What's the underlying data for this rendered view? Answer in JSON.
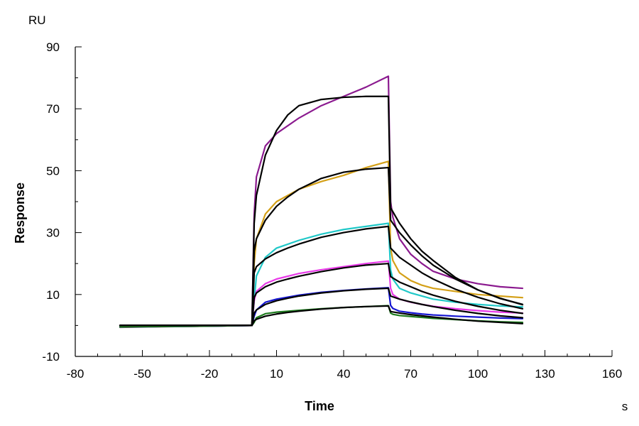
{
  "chart_data": {
    "type": "line",
    "title": "",
    "xlabel": "Time",
    "ylabel": "Response",
    "x_unit": "s",
    "y_unit": "RU",
    "xlim": [
      -80,
      160
    ],
    "ylim": [
      -10,
      90
    ],
    "x_ticks": [
      -80,
      -50,
      -20,
      10,
      40,
      70,
      100,
      130,
      160
    ],
    "y_ticks": [
      -10,
      10,
      30,
      50,
      70,
      90
    ],
    "x_minor_step": 10,
    "y_minor_step": 10,
    "grid": false,
    "legend": "none",
    "injection_start": 0,
    "injection_end": 60,
    "series": [
      {
        "kind": "measured",
        "color": "#8B1A8F",
        "x": [
          -60,
          -50,
          -20,
          -1,
          0,
          1,
          5,
          10,
          20,
          30,
          40,
          50,
          60,
          61,
          62,
          65,
          70,
          75,
          80,
          90,
          100,
          110,
          120
        ],
        "values": [
          -0.6,
          -0.5,
          -0.2,
          0,
          36,
          48,
          58,
          62,
          67,
          71,
          74,
          77,
          80.5,
          40,
          35,
          28,
          23,
          20,
          17.5,
          15,
          13.5,
          12.5,
          12
        ]
      },
      {
        "kind": "measured",
        "color": "#D4A017",
        "x": [
          -60,
          -50,
          -20,
          -1,
          0,
          1,
          5,
          10,
          20,
          30,
          40,
          50,
          60,
          61,
          62,
          65,
          70,
          75,
          80,
          90,
          100,
          110,
          120
        ],
        "values": [
          -0.5,
          -0.4,
          -0.2,
          0,
          20,
          28,
          36,
          40,
          44,
          46.5,
          48.5,
          51,
          53,
          25,
          21,
          17,
          14.5,
          13,
          12,
          11,
          10,
          9.5,
          9
        ]
      },
      {
        "kind": "measured",
        "color": "#20C8C8",
        "x": [
          -60,
          -50,
          -20,
          -1,
          0,
          1,
          5,
          10,
          20,
          30,
          40,
          50,
          60,
          61,
          62,
          65,
          70,
          75,
          80,
          90,
          100,
          110,
          120
        ],
        "values": [
          -0.5,
          -0.4,
          -0.2,
          0,
          8,
          16,
          22,
          25,
          27.5,
          29.5,
          31,
          32,
          33,
          18,
          15,
          12,
          10.5,
          9.5,
          8.5,
          7.5,
          6.8,
          6.3,
          6
        ]
      },
      {
        "kind": "measured",
        "color": "#E83AE8",
        "x": [
          -60,
          -50,
          -20,
          -1,
          0,
          1,
          5,
          10,
          20,
          30,
          40,
          50,
          60,
          61,
          62,
          65,
          70,
          75,
          80,
          90,
          100,
          110,
          120
        ],
        "values": [
          -0.5,
          -0.4,
          -0.2,
          0,
          8,
          11,
          13.5,
          15,
          16.8,
          18,
          19,
          20,
          20.8,
          12,
          10,
          8.5,
          7.5,
          6.8,
          6.2,
          5.4,
          4.8,
          4.3,
          4
        ]
      },
      {
        "kind": "measured",
        "color": "#1515D0",
        "x": [
          -60,
          -50,
          -20,
          -1,
          0,
          1,
          5,
          10,
          20,
          30,
          40,
          50,
          60,
          61,
          62,
          65,
          70,
          75,
          80,
          90,
          100,
          110,
          120
        ],
        "values": [
          -0.5,
          -0.4,
          -0.2,
          0,
          3,
          5,
          7.5,
          8.5,
          9.8,
          10.7,
          11.3,
          11.8,
          12.2,
          6.5,
          5.5,
          4.6,
          4.1,
          3.7,
          3.4,
          3,
          2.7,
          2.4,
          2.2
        ]
      },
      {
        "kind": "measured",
        "color": "#1E7B1E",
        "x": [
          -60,
          -50,
          -20,
          -1,
          0,
          1,
          5,
          10,
          20,
          30,
          40,
          50,
          60,
          61,
          62,
          65,
          70,
          75,
          80,
          90,
          100,
          110,
          120
        ],
        "values": [
          -0.5,
          -0.4,
          -0.2,
          0,
          1,
          2.5,
          3.8,
          4.3,
          4.9,
          5.4,
          5.8,
          6.1,
          6.4,
          4,
          3.6,
          3.2,
          2.9,
          2.6,
          2.3,
          1.9,
          1.5,
          1.2,
          1
        ]
      },
      {
        "kind": "fit",
        "color": "#000000",
        "x": [
          -60,
          -20,
          -1,
          0,
          1,
          5,
          10,
          15,
          20,
          30,
          40,
          50,
          60,
          61,
          65,
          70,
          75,
          80,
          90,
          100,
          110,
          120
        ],
        "values": [
          0,
          0,
          0,
          33,
          42,
          55,
          63,
          68,
          71,
          73,
          73.7,
          74,
          74,
          38,
          33,
          28,
          24,
          21,
          15.5,
          11.5,
          8.7,
          6.8
        ]
      },
      {
        "kind": "fit",
        "color": "#000000",
        "x": [
          -60,
          -20,
          -1,
          0,
          1,
          5,
          10,
          15,
          20,
          30,
          40,
          50,
          60,
          61,
          65,
          70,
          75,
          80,
          90,
          100,
          110,
          120
        ],
        "values": [
          0,
          0,
          0,
          24,
          28,
          34,
          38.5,
          41.5,
          44,
          47.5,
          49.5,
          50.5,
          51,
          34,
          30,
          26,
          22.5,
          19.5,
          15,
          11.5,
          8.8,
          6.7
        ]
      },
      {
        "kind": "fit",
        "color": "#000000",
        "x": [
          -60,
          -20,
          -1,
          0,
          1,
          5,
          10,
          15,
          20,
          30,
          40,
          50,
          60,
          61,
          65,
          70,
          75,
          80,
          90,
          100,
          110,
          120
        ],
        "values": [
          0,
          0,
          0,
          17,
          19,
          21.5,
          23.5,
          25,
          26.3,
          28.5,
          30,
          31.2,
          32,
          25,
          22,
          19.5,
          17,
          15,
          11.7,
          9.1,
          7,
          5.4
        ]
      },
      {
        "kind": "fit",
        "color": "#000000",
        "x": [
          -60,
          -20,
          -1,
          0,
          1,
          5,
          10,
          15,
          20,
          30,
          40,
          50,
          60,
          61,
          65,
          70,
          75,
          80,
          90,
          100,
          110,
          120
        ],
        "values": [
          0,
          0,
          0,
          9,
          10.5,
          12.5,
          14,
          15,
          15.9,
          17.4,
          18.6,
          19.5,
          20,
          15.8,
          14,
          12.5,
          11,
          9.8,
          7.8,
          6.2,
          4.9,
          3.9
        ]
      },
      {
        "kind": "fit",
        "color": "#000000",
        "x": [
          -60,
          -20,
          -1,
          0,
          1,
          5,
          10,
          15,
          20,
          30,
          40,
          50,
          60,
          61,
          65,
          70,
          75,
          80,
          90,
          100,
          110,
          120
        ],
        "values": [
          0,
          0,
          0,
          4,
          5,
          6.8,
          8,
          8.8,
          9.5,
          10.5,
          11.2,
          11.7,
          12,
          9.5,
          8.5,
          7.6,
          6.8,
          6.1,
          4.9,
          3.9,
          3.1,
          2.5
        ]
      },
      {
        "kind": "fit",
        "color": "#000000",
        "x": [
          -60,
          -20,
          -1,
          0,
          1,
          5,
          10,
          15,
          20,
          30,
          40,
          50,
          60,
          61,
          65,
          70,
          75,
          80,
          90,
          100,
          110,
          120
        ],
        "values": [
          0,
          0,
          0,
          1.5,
          2,
          3,
          3.7,
          4.2,
          4.6,
          5.3,
          5.8,
          6.1,
          6.3,
          4.5,
          4,
          3.5,
          3.1,
          2.7,
          2,
          1.4,
          1,
          0.6
        ]
      }
    ]
  }
}
